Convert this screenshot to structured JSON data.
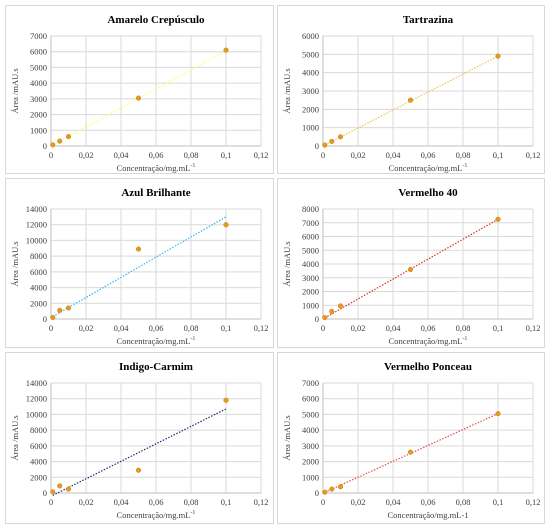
{
  "chart_data": [
    {
      "type": "scatter",
      "title": "Amarelo Crepúsculo",
      "xlabel": "Concentração/mg.mL",
      "xlabel_sup": "-1",
      "ylabel": "Área /mAU.s",
      "xlim": [
        0,
        0.12
      ],
      "ylim": [
        0,
        7000
      ],
      "xticks": [
        "0",
        "0,02",
        "0,04",
        "0,06",
        "0,08",
        "0,1",
        "0,12"
      ],
      "yticks": [
        "0",
        "1000",
        "2000",
        "3000",
        "4000",
        "5000",
        "6000",
        "7000"
      ],
      "grid": true,
      "points": [
        [
          0.001,
          70
        ],
        [
          0.005,
          310
        ],
        [
          0.01,
          600
        ],
        [
          0.05,
          3050
        ],
        [
          0.1,
          6100
        ]
      ],
      "trendline": {
        "type": "linear",
        "x": [
          0.001,
          0.1
        ],
        "y": [
          60,
          6050
        ],
        "color": "#ffff66"
      },
      "marker_color": "#e69a1f"
    },
    {
      "type": "scatter",
      "title": "Tartrazina",
      "xlabel": "Concentração/mg.mL",
      "xlabel_sup": "-1",
      "ylabel": "Área /mAU.s",
      "xlim": [
        0,
        0.12
      ],
      "ylim": [
        0,
        6000
      ],
      "xticks": [
        "0",
        "0,02",
        "0,04",
        "0,06",
        "0,08",
        "0,1",
        "0,12"
      ],
      "yticks": [
        "0",
        "1000",
        "2000",
        "3000",
        "4000",
        "5000",
        "6000"
      ],
      "grid": true,
      "points": [
        [
          0.001,
          50
        ],
        [
          0.005,
          250
        ],
        [
          0.01,
          500
        ],
        [
          0.05,
          2500
        ],
        [
          0.1,
          4900
        ]
      ],
      "trendline": {
        "type": "linear",
        "x": [
          0.001,
          0.1
        ],
        "y": [
          50,
          4900
        ],
        "color": "#f0c040"
      },
      "marker_color": "#e69a1f"
    },
    {
      "type": "scatter",
      "title": "Azul Brilhante",
      "xlabel": "Concentração/mg.mL",
      "xlabel_sup": "-1",
      "ylabel": "Área /mAU.s",
      "xlim": [
        0,
        0.12
      ],
      "ylim": [
        0,
        14000
      ],
      "xticks": [
        "0",
        "0,02",
        "0,04",
        "0,06",
        "0,08",
        "0,1",
        "0,12"
      ],
      "yticks": [
        "0",
        "2000",
        "4000",
        "6000",
        "8000",
        "10000",
        "12000",
        "14000"
      ],
      "grid": true,
      "points": [
        [
          0.001,
          200
        ],
        [
          0.005,
          1100
        ],
        [
          0.01,
          1400
        ],
        [
          0.05,
          8900
        ],
        [
          0.1,
          12000
        ]
      ],
      "trendline": {
        "type": "linear",
        "x": [
          0.001,
          0.1
        ],
        "y": [
          300,
          13000
        ],
        "color": "#33bbee"
      },
      "marker_color": "#e69a1f"
    },
    {
      "type": "scatter",
      "title": "Vermelho 40",
      "xlabel": "Concentração/mg.mL",
      "xlabel_sup": "-1",
      "ylabel": "Área /mAU.s",
      "xlim": [
        0,
        0.12
      ],
      "ylim": [
        0,
        8000
      ],
      "xticks": [
        "0",
        "0,02",
        "0,04",
        "0,06",
        "0,08",
        "0,1",
        "0,12"
      ],
      "yticks": [
        "0",
        "1000",
        "2000",
        "3000",
        "4000",
        "5000",
        "6000",
        "7000",
        "8000"
      ],
      "grid": true,
      "points": [
        [
          0.001,
          100
        ],
        [
          0.005,
          550
        ],
        [
          0.01,
          950
        ],
        [
          0.05,
          3600
        ],
        [
          0.1,
          7250
        ]
      ],
      "trendline": {
        "type": "linear",
        "x": [
          0.001,
          0.1
        ],
        "y": [
          80,
          7250
        ],
        "color": "#e03020"
      },
      "marker_color": "#e69a1f"
    },
    {
      "type": "scatter",
      "title": "Indigo-Carmim",
      "xlabel": "Concentração/mg.mL",
      "xlabel_sup": "-1",
      "ylabel": "Área /mAU.s",
      "xlim": [
        0,
        0.12
      ],
      "ylim": [
        0,
        14000
      ],
      "xticks": [
        "0",
        "0,02",
        "0,04",
        "0,06",
        "0,08",
        "0,1",
        "0,12"
      ],
      "yticks": [
        "0",
        "2000",
        "4000",
        "6000",
        "8000",
        "10000",
        "12000",
        "14000"
      ],
      "grid": true,
      "points": [
        [
          0.001,
          150
        ],
        [
          0.005,
          900
        ],
        [
          0.01,
          500
        ],
        [
          0.05,
          2900
        ],
        [
          0.1,
          11800
        ]
      ],
      "trendline": {
        "type": "linear",
        "x": [
          0.001,
          0.1
        ],
        "y": [
          -300,
          10700
        ],
        "color": "#1f2a7a"
      },
      "marker_color": "#e69a1f"
    },
    {
      "type": "scatter",
      "title": "Vermelho Ponceau",
      "xlabel": "Concentração/mg.mL-1",
      "xlabel_sup": "",
      "ylabel": "Área /mAU.s",
      "xlim": [
        0,
        0.12
      ],
      "ylim": [
        0,
        7000
      ],
      "xticks": [
        "0",
        "0,02",
        "0,04",
        "0,06",
        "0,08",
        "0,1",
        "0,12"
      ],
      "yticks": [
        "0",
        "1000",
        "2000",
        "3000",
        "4000",
        "5000",
        "6000",
        "7000"
      ],
      "grid": true,
      "points": [
        [
          0.001,
          50
        ],
        [
          0.005,
          250
        ],
        [
          0.01,
          400
        ],
        [
          0.05,
          2600
        ],
        [
          0.1,
          5050
        ]
      ],
      "trendline": {
        "type": "linear",
        "x": [
          0.001,
          0.1
        ],
        "y": [
          40,
          5050
        ],
        "color": "#e05050"
      },
      "marker_color": "#e69a1f"
    }
  ]
}
